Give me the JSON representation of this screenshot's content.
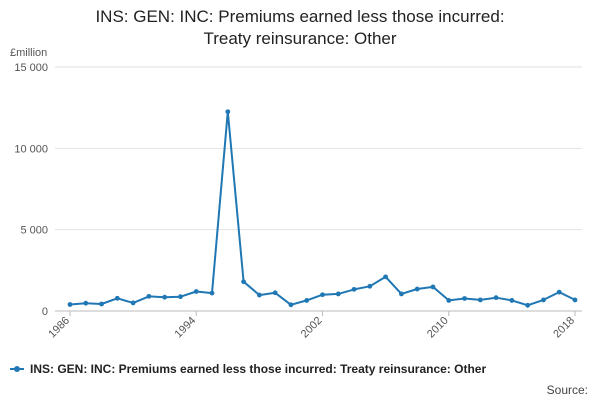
{
  "chart_data": {
    "type": "line",
    "title": "INS: GEN: INC: Premiums earned less those incurred:\nTreaty reinsurance: Other",
    "ylabel": "£million",
    "xlabel": "",
    "ylim": [
      0,
      15000
    ],
    "yticks": [
      0,
      5000,
      10000,
      15000
    ],
    "ytick_labels": [
      "0",
      "5 000",
      "10 000",
      "15 000"
    ],
    "xlim": [
      1986,
      2018
    ],
    "xticks": [
      1986,
      1994,
      2002,
      2010,
      2018
    ],
    "xtick_labels": [
      "1986",
      "1994",
      "2002",
      "2010",
      "2018"
    ],
    "grid": true,
    "legend_position": "bottom-left",
    "series": [
      {
        "name": "INS: GEN: INC: Premiums earned less those incurred: Treaty reinsurance: Other",
        "color": "#1f77b4",
        "x": [
          1986,
          1987,
          1988,
          1989,
          1990,
          1991,
          1992,
          1993,
          1994,
          1995,
          1996,
          1997,
          1998,
          1999,
          2000,
          2001,
          2002,
          2003,
          2004,
          2005,
          2006,
          2007,
          2008,
          2009,
          2010,
          2011,
          2012,
          2013,
          2014,
          2015,
          2016,
          2017,
          2018
        ],
        "y": [
          400,
          480,
          430,
          780,
          500,
          900,
          850,
          880,
          1200,
          1100,
          12250,
          1800,
          980,
          1120,
          380,
          650,
          1000,
          1050,
          1330,
          1520,
          2100,
          1050,
          1350,
          1480,
          650,
          770,
          680,
          820,
          650,
          350,
          680,
          1160,
          680
        ]
      }
    ]
  },
  "legend": {
    "label": "INS: GEN: INC: Premiums earned less those incurred: Treaty reinsurance: Other"
  },
  "footer": {
    "source": "Source:"
  }
}
